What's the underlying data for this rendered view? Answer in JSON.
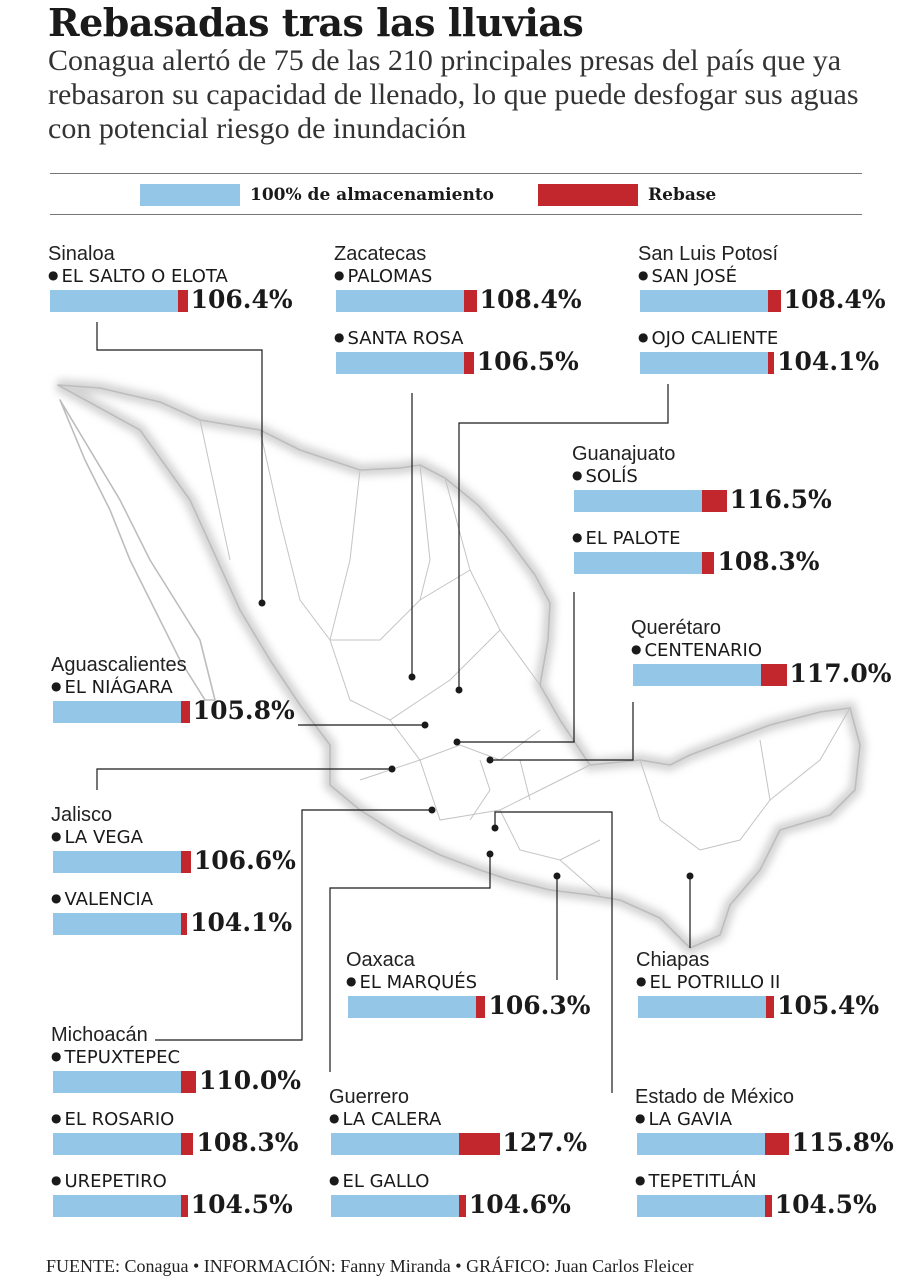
{
  "title": "Rebasadas tras las lluvias",
  "subtitle": "Conagua alertó de 75 de las 210 principales presas del país que ya rebasaron su capacidad de llenado, lo que puede desfogar sus aguas con potencial riesgo de inundación",
  "legend": {
    "full": {
      "label": "100% de almacenamiento",
      "color": "#93c6e7"
    },
    "over": {
      "label": "Rebase",
      "color": "#c1272d"
    }
  },
  "footer": "FUENTE: Conagua • INFORMACIÓN: Fanny Miranda • GRÁFICO: Juan Carlos Fleicer",
  "chart_data": {
    "type": "bar",
    "units": "% de almacenamiento",
    "baseline": 100,
    "groups": [
      {
        "state": "Sinaloa",
        "dams": [
          {
            "name": "EL SALTO O ELOTA",
            "value": 106.4,
            "label": "106.4%"
          }
        ]
      },
      {
        "state": "Zacatecas",
        "dams": [
          {
            "name": "PALOMAS",
            "value": 108.4,
            "label": "108.4%"
          },
          {
            "name": "SANTA ROSA",
            "value": 106.5,
            "label": "106.5%"
          }
        ]
      },
      {
        "state": "San Luis Potosí",
        "dams": [
          {
            "name": "SAN JOSÉ",
            "value": 108.4,
            "label": "108.4%"
          },
          {
            "name": "OJO CALIENTE",
            "value": 104.1,
            "label": "104.1%"
          }
        ]
      },
      {
        "state": "Guanajuato",
        "dams": [
          {
            "name": "SOLÍS",
            "value": 116.5,
            "label": "116.5%"
          },
          {
            "name": "EL PALOTE",
            "value": 108.3,
            "label": "108.3%"
          }
        ]
      },
      {
        "state": "Querétaro",
        "dams": [
          {
            "name": "CENTENARIO",
            "value": 117.0,
            "label": "117.0%"
          }
        ]
      },
      {
        "state": "Aguascalientes",
        "dams": [
          {
            "name": "EL NIÁGARA",
            "value": 105.8,
            "label": "105.8%"
          }
        ]
      },
      {
        "state": "Jalisco",
        "dams": [
          {
            "name": "LA VEGA",
            "value": 106.6,
            "label": "106.6%"
          },
          {
            "name": "VALENCIA",
            "value": 104.1,
            "label": "104.1%"
          }
        ]
      },
      {
        "state": "Oaxaca",
        "dams": [
          {
            "name": "EL MARQUÉS",
            "value": 106.3,
            "label": "106.3%"
          }
        ]
      },
      {
        "state": "Chiapas",
        "dams": [
          {
            "name": "EL POTRILLO II",
            "value": 105.4,
            "label": "105.4%"
          }
        ]
      },
      {
        "state": "Michoacán",
        "dams": [
          {
            "name": "TEPUXTEPEC",
            "value": 110.0,
            "label": "110.0%"
          },
          {
            "name": "EL ROSARIO",
            "value": 108.3,
            "label": "108.3%"
          },
          {
            "name": "UREPETIRO",
            "value": 104.5,
            "label": "104.5%"
          }
        ]
      },
      {
        "state": "Guerrero",
        "dams": [
          {
            "name": "LA CALERA",
            "value": 127.0,
            "label": "127.%"
          },
          {
            "name": "EL GALLO",
            "value": 104.6,
            "label": "104.6%"
          }
        ]
      },
      {
        "state": "Estado de México",
        "dams": [
          {
            "name": "LA GAVIA",
            "value": 115.8,
            "label": "115.8%"
          },
          {
            "name": "TEPETITLÁN",
            "value": 104.5,
            "label": "104.5%"
          }
        ]
      }
    ]
  }
}
